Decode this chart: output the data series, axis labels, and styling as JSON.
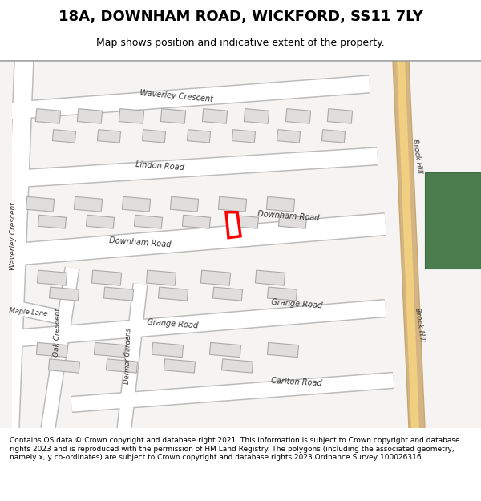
{
  "title": "18A, DOWNHAM ROAD, WICKFORD, SS11 7LY",
  "subtitle": "Map shows position and indicative extent of the property.",
  "footer": "Contains OS data © Crown copyright and database right 2021. This information is subject to Crown copyright and database rights 2023 and is reproduced with the permission of HM Land Registry. The polygons (including the associated geometry, namely x, y co-ordinates) are subject to Crown copyright and database rights 2023 Ordnance Survey 100026316.",
  "bg_color": "#f0efee",
  "road_color": "#ffffff",
  "road_border": "#cccccc",
  "building_color": "#e0dedd",
  "building_border": "#aaaaaa",
  "highlight_color": "#e8b84b",
  "green_color": "#4a7c4e",
  "plot_color": "#ffffff",
  "plot_border": "#ff0000",
  "map_bg": "#f5f4f2"
}
